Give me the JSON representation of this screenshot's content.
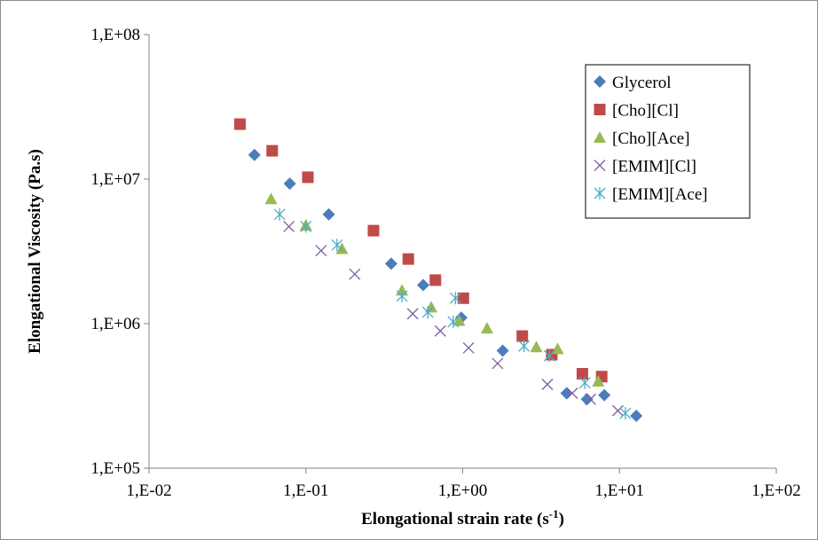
{
  "chart_data": {
    "type": "scatter",
    "xlabel": "Elongational strain rate (s",
    "xlabel_sup": "-1",
    "xlabel_suffix": ")",
    "ylabel": "Elongational Viscosity (Pa.s)",
    "x_scale": "log",
    "y_scale": "log",
    "xlim": [
      0.01,
      100
    ],
    "ylim": [
      100000,
      100000000
    ],
    "x_ticks": [
      0.01,
      0.1,
      1,
      10,
      100
    ],
    "x_tick_labels": [
      "1,E-02",
      "1,E-01",
      "1,E+00",
      "1,E+01",
      "1,E+02"
    ],
    "y_ticks": [
      100000,
      1000000,
      10000000,
      100000000
    ],
    "y_tick_labels": [
      "1,E+05",
      "1,E+06",
      "1,E+07",
      "1,E+08"
    ],
    "grid": false,
    "legend_position": "top-right",
    "series": [
      {
        "name": "Glycerol",
        "marker": "diamond",
        "color": "#4a7ebb",
        "points": [
          [
            0.047,
            14700000
          ],
          [
            0.079,
            9300000
          ],
          [
            0.14,
            5700000
          ],
          [
            0.35,
            2600000
          ],
          [
            0.56,
            1850000
          ],
          [
            0.98,
            1100000
          ],
          [
            1.8,
            650000
          ],
          [
            4.6,
            330000
          ],
          [
            6.2,
            300000
          ],
          [
            8.0,
            320000
          ],
          [
            12.8,
            230000
          ]
        ]
      },
      {
        "name": "[Cho][Cl]",
        "marker": "square",
        "color": "#be4b48",
        "points": [
          [
            0.038,
            24000000
          ],
          [
            0.061,
            15700000
          ],
          [
            0.103,
            10300000
          ],
          [
            0.27,
            4400000
          ],
          [
            0.45,
            2800000
          ],
          [
            0.67,
            2000000
          ],
          [
            1.01,
            1500000
          ],
          [
            2.4,
            820000
          ],
          [
            3.7,
            610000
          ],
          [
            5.8,
            450000
          ],
          [
            7.7,
            430000
          ]
        ]
      },
      {
        "name": "[Cho][Ace]",
        "marker": "triangle",
        "color": "#98b954",
        "points": [
          [
            0.06,
            7300000
          ],
          [
            0.1,
            4800000
          ],
          [
            0.17,
            3300000
          ],
          [
            0.41,
            1700000
          ],
          [
            0.63,
            1300000
          ],
          [
            0.95,
            1050000
          ],
          [
            1.43,
            930000
          ],
          [
            2.95,
            690000
          ],
          [
            4.03,
            670000
          ],
          [
            7.32,
            400000
          ]
        ]
      },
      {
        "name": "[EMIM][Cl]",
        "marker": "x",
        "color": "#7d60a0",
        "points": [
          [
            0.078,
            4700000
          ],
          [
            0.125,
            3200000
          ],
          [
            0.205,
            2200000
          ],
          [
            0.48,
            1170000
          ],
          [
            0.72,
            890000
          ],
          [
            1.09,
            680000
          ],
          [
            1.67,
            530000
          ],
          [
            3.47,
            380000
          ],
          [
            5.0,
            330000
          ],
          [
            6.52,
            300000
          ],
          [
            9.77,
            250000
          ]
        ]
      },
      {
        "name": "[EMIM][Ace]",
        "marker": "asterisk",
        "color": "#4bacc6",
        "points": [
          [
            0.068,
            5700000
          ],
          [
            0.1,
            4700000
          ],
          [
            0.158,
            3500000
          ],
          [
            0.41,
            1550000
          ],
          [
            0.6,
            1200000
          ],
          [
            0.87,
            1030000
          ],
          [
            0.9,
            1500000
          ],
          [
            2.46,
            700000
          ],
          [
            3.57,
            600000
          ],
          [
            6.02,
            390000
          ],
          [
            10.9,
            240000
          ]
        ]
      }
    ]
  }
}
